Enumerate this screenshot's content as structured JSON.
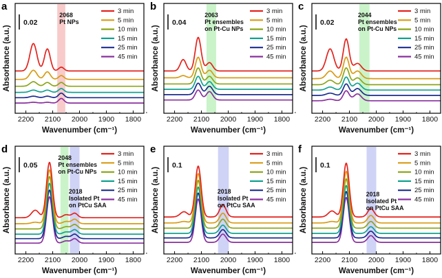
{
  "figure": {
    "panel_letters": [
      "a",
      "b",
      "c",
      "d",
      "e",
      "f"
    ]
  },
  "chart_data": [
    {
      "panel": "a",
      "type": "line",
      "xlabel": "Wavenumber (cm⁻¹)",
      "ylabel": "Absorbance (a.u.)",
      "xlim": [
        2240,
        1760
      ],
      "xticks": [
        "2200",
        "2100",
        "2000",
        "1900",
        "1800"
      ],
      "scale_bar": "0.02",
      "highlight": {
        "center": 2068,
        "width": 30,
        "color": "#f6b8b8"
      },
      "annotations": [
        {
          "label": "2068",
          "lines": [
            "2068",
            "Pt NPs"
          ]
        }
      ],
      "series": [
        {
          "name": "3 min",
          "color": "#e3221c",
          "offset": 5.0,
          "peaks": [
            [
              2172,
              3.6,
              13
            ],
            [
              2120,
              2.9,
              11
            ],
            [
              2068,
              0.5,
              10
            ]
          ]
        },
        {
          "name": "5 min",
          "color": "#d99a12",
          "offset": 3.9,
          "peaks": [
            [
              2172,
              1.2,
              13
            ],
            [
              2120,
              1.0,
              11
            ],
            [
              2068,
              0.5,
              10
            ]
          ]
        },
        {
          "name": "10 min",
          "color": "#8ba519",
          "offset": 3.0,
          "peaks": [
            [
              2172,
              0.6,
              13
            ],
            [
              2120,
              0.5,
              11
            ],
            [
              2068,
              0.5,
              10
            ]
          ]
        },
        {
          "name": "15 min",
          "color": "#10a291",
          "offset": 2.2,
          "peaks": [
            [
              2172,
              0.3,
              13
            ],
            [
              2120,
              0.3,
              11
            ],
            [
              2068,
              0.5,
              10
            ]
          ]
        },
        {
          "name": "25 min",
          "color": "#1b2c8f",
          "offset": 1.5,
          "peaks": [
            [
              2172,
              0.2,
              13
            ],
            [
              2120,
              0.2,
              11
            ],
            [
              2068,
              0.6,
              10
            ]
          ]
        },
        {
          "name": "45 min",
          "color": "#8a2f9f",
          "offset": 0.8,
          "peaks": [
            [
              2172,
              0.1,
              13
            ],
            [
              2120,
              0.1,
              11
            ],
            [
              2068,
              0.6,
              10
            ]
          ]
        }
      ]
    },
    {
      "panel": "b",
      "type": "line",
      "xlabel": "Wavenumber (cm⁻¹)",
      "ylabel": "Absorbance (a.u.)",
      "xlim": [
        2240,
        1760
      ],
      "xticks": [
        "2200",
        "2100",
        "2000",
        "1900",
        "1800"
      ],
      "scale_bar": "0.04",
      "highlight": {
        "center": 2063,
        "width": 36,
        "color": "#b8efb8"
      },
      "annotations": [
        {
          "label": "2063",
          "lines": [
            "2063",
            "Pt ensembles",
            "on Pt-Cu NPs"
          ]
        }
      ],
      "series": [
        {
          "name": "3 min",
          "color": "#e3221c",
          "offset": 5.0,
          "peaks": [
            [
              2168,
              1.5,
              11
            ],
            [
              2112,
              4.4,
              11
            ],
            [
              2070,
              1.1,
              12
            ]
          ]
        },
        {
          "name": "5 min",
          "color": "#d99a12",
          "offset": 4.1,
          "peaks": [
            [
              2168,
              0.3,
              11
            ],
            [
              2112,
              2.7,
              11
            ],
            [
              2070,
              1.0,
              12
            ]
          ]
        },
        {
          "name": "10 min",
          "color": "#8ba519",
          "offset": 3.3,
          "peaks": [
            [
              2112,
              2.1,
              11
            ],
            [
              2070,
              1.0,
              12
            ]
          ]
        },
        {
          "name": "15 min",
          "color": "#10a291",
          "offset": 2.6,
          "peaks": [
            [
              2112,
              1.7,
              11
            ],
            [
              2070,
              1.0,
              12
            ]
          ]
        },
        {
          "name": "25 min",
          "color": "#1b2c8f",
          "offset": 1.9,
          "peaks": [
            [
              2112,
              1.5,
              11
            ],
            [
              2070,
              1.1,
              12
            ]
          ]
        },
        {
          "name": "45 min",
          "color": "#8a2f9f",
          "offset": 1.2,
          "peaks": [
            [
              2112,
              1.3,
              11
            ],
            [
              2070,
              1.1,
              12
            ]
          ]
        }
      ]
    },
    {
      "panel": "c",
      "type": "line",
      "xlabel": "Wavenumber (cm⁻¹)",
      "ylabel": "Absorbance (a.u.)",
      "xlim": [
        2240,
        1760
      ],
      "xticks": [
        "2200",
        "2100",
        "2000",
        "1900",
        "1800"
      ],
      "scale_bar": "0.02",
      "highlight": {
        "center": 2044,
        "width": 38,
        "color": "#b8efb8"
      },
      "annotations": [
        {
          "label": "2044",
          "lines": [
            "2044",
            "Pt ensembles",
            "on Pt-Cu NPs"
          ]
        }
      ],
      "series": [
        {
          "name": "3 min",
          "color": "#e3221c",
          "offset": 5.0,
          "peaks": [
            [
              2172,
              2.9,
              14
            ],
            [
              2112,
              4.2,
              11
            ],
            [
              2070,
              1.0,
              14
            ]
          ]
        },
        {
          "name": "5 min",
          "color": "#d99a12",
          "offset": 4.0,
          "peaks": [
            [
              2172,
              1.0,
              14
            ],
            [
              2112,
              2.8,
              11
            ],
            [
              2070,
              1.0,
              14
            ]
          ]
        },
        {
          "name": "10 min",
          "color": "#8ba519",
          "offset": 3.2,
          "peaks": [
            [
              2172,
              0.6,
              14
            ],
            [
              2112,
              2.2,
              11
            ],
            [
              2070,
              0.9,
              14
            ]
          ]
        },
        {
          "name": "15 min",
          "color": "#10a291",
          "offset": 2.5,
          "peaks": [
            [
              2172,
              0.4,
              14
            ],
            [
              2112,
              1.7,
              11
            ],
            [
              2070,
              0.9,
              14
            ]
          ]
        },
        {
          "name": "25 min",
          "color": "#1b2c8f",
          "offset": 1.8,
          "peaks": [
            [
              2172,
              0.3,
              14
            ],
            [
              2112,
              1.5,
              11
            ],
            [
              2070,
              0.9,
              14
            ]
          ]
        },
        {
          "name": "45 min",
          "color": "#8a2f9f",
          "offset": 1.1,
          "peaks": [
            [
              2172,
              0.2,
              14
            ],
            [
              2112,
              1.3,
              11
            ],
            [
              2070,
              0.9,
              14
            ]
          ]
        }
      ]
    },
    {
      "panel": "d",
      "type": "line",
      "xlabel": "Wavenumber (cm⁻¹)",
      "ylabel": "Absorbance (a.u.)",
      "xlim": [
        2240,
        1760
      ],
      "xticks": [
        "2200",
        "2100",
        "2000",
        "1900",
        "1800"
      ],
      "scale_bar": "0.05",
      "highlights": [
        {
          "center": 2056,
          "width": 30,
          "color": "#b8efb8"
        },
        {
          "center": 2018,
          "width": 36,
          "color": "#bfc4f2"
        }
      ],
      "annotations": [
        {
          "label": "2048",
          "lines": [
            "2048",
            "Pt ensembles",
            "on Pt-Cu NPs"
          ]
        },
        {
          "label": "2018",
          "lines": [
            "2018",
            "Isolated Pt",
            "on PtCu SAA"
          ]
        }
      ],
      "series": [
        {
          "name": "3 min",
          "color": "#e3221c",
          "offset": 4.3,
          "peaks": [
            [
              2165,
              1.0,
              14
            ],
            [
              2112,
              7.4,
              11
            ],
            [
              2050,
              0.4,
              12
            ],
            [
              2018,
              0.6,
              11
            ]
          ]
        },
        {
          "name": "5 min",
          "color": "#d99a12",
          "offset": 3.5,
          "peaks": [
            [
              2165,
              0.2,
              14
            ],
            [
              2112,
              7.2,
              11
            ],
            [
              2050,
              0.3,
              12
            ],
            [
              2018,
              0.6,
              11
            ]
          ]
        },
        {
          "name": "10 min",
          "color": "#8ba519",
          "offset": 2.8,
          "peaks": [
            [
              2112,
              7.0,
              11
            ],
            [
              2050,
              0.3,
              12
            ],
            [
              2018,
              0.6,
              11
            ]
          ]
        },
        {
          "name": "15 min",
          "color": "#10a291",
          "offset": 2.1,
          "peaks": [
            [
              2112,
              6.8,
              11
            ],
            [
              2050,
              0.3,
              12
            ],
            [
              2018,
              0.6,
              11
            ]
          ]
        },
        {
          "name": "25 min",
          "color": "#1b2c8f",
          "offset": 1.5,
          "peaks": [
            [
              2112,
              6.5,
              11
            ],
            [
              2050,
              0.3,
              12
            ],
            [
              2018,
              0.6,
              11
            ]
          ]
        },
        {
          "name": "45 min",
          "color": "#8a2f9f",
          "offset": 0.9,
          "peaks": [
            [
              2112,
              6.2,
              11
            ],
            [
              2050,
              0.3,
              12
            ],
            [
              2018,
              0.6,
              11
            ]
          ]
        }
      ]
    },
    {
      "panel": "e",
      "type": "line",
      "xlabel": "Wavenumber (cm⁻¹)",
      "ylabel": "Absorbance (a.u.)",
      "xlim": [
        2240,
        1760
      ],
      "xticks": [
        "2200",
        "2100",
        "2000",
        "1900",
        "1800"
      ],
      "scale_bar": "0.1",
      "highlight": {
        "center": 2018,
        "width": 40,
        "color": "#bfc4f2"
      },
      "annotations": [
        {
          "label": "2018",
          "lines": [
            "2018",
            "Isolated Pt",
            "on PtCu SAA"
          ]
        }
      ],
      "series": [
        {
          "name": "3 min",
          "color": "#e3221c",
          "offset": 4.4,
          "peaks": [
            [
              2165,
              0.7,
              14
            ],
            [
              2112,
              6.8,
              11
            ],
            [
              2020,
              1.6,
              12
            ]
          ]
        },
        {
          "name": "5 min",
          "color": "#d99a12",
          "offset": 3.6,
          "peaks": [
            [
              2165,
              0.2,
              14
            ],
            [
              2112,
              6.6,
              11
            ],
            [
              2020,
              1.3,
              12
            ]
          ]
        },
        {
          "name": "10 min",
          "color": "#8ba519",
          "offset": 2.9,
          "peaks": [
            [
              2112,
              6.4,
              11
            ],
            [
              2020,
              1.2,
              12
            ]
          ]
        },
        {
          "name": "15 min",
          "color": "#10a291",
          "offset": 2.2,
          "peaks": [
            [
              2112,
              6.2,
              11
            ],
            [
              2020,
              1.1,
              12
            ]
          ]
        },
        {
          "name": "25 min",
          "color": "#1b2c8f",
          "offset": 1.6,
          "peaks": [
            [
              2112,
              6.0,
              11
            ],
            [
              2020,
              1.1,
              12
            ]
          ]
        },
        {
          "name": "45 min",
          "color": "#8a2f9f",
          "offset": 1.0,
          "peaks": [
            [
              2112,
              5.8,
              11
            ],
            [
              2020,
              1.1,
              12
            ]
          ]
        }
      ]
    },
    {
      "panel": "f",
      "type": "line",
      "xlabel": "Wavenumber (cm⁻¹)",
      "ylabel": "Absorbance (a.u.)",
      "xlim": [
        2240,
        1760
      ],
      "xticks": [
        "2200",
        "2100",
        "2000",
        "1900",
        "1800"
      ],
      "scale_bar": "0.1",
      "highlight": {
        "center": 2018,
        "width": 36,
        "color": "#bfc4f2"
      },
      "annotations": [
        {
          "label": "2018",
          "lines": [
            "2018",
            "Isolated Pt",
            "on PtCu SAA"
          ]
        }
      ],
      "series": [
        {
          "name": "3 min",
          "color": "#e3221c",
          "offset": 4.4,
          "peaks": [
            [
              2165,
              0.8,
              14
            ],
            [
              2112,
              7.2,
              11
            ],
            [
              2020,
              1.1,
              12
            ]
          ]
        },
        {
          "name": "5 min",
          "color": "#d99a12",
          "offset": 3.6,
          "peaks": [
            [
              2165,
              0.2,
              14
            ],
            [
              2112,
              6.9,
              11
            ],
            [
              2020,
              1.0,
              12
            ]
          ]
        },
        {
          "name": "10 min",
          "color": "#8ba519",
          "offset": 2.9,
          "peaks": [
            [
              2112,
              6.6,
              11
            ],
            [
              2020,
              0.9,
              12
            ]
          ]
        },
        {
          "name": "15 min",
          "color": "#10a291",
          "offset": 2.2,
          "peaks": [
            [
              2112,
              6.4,
              11
            ],
            [
              2020,
              0.9,
              12
            ]
          ]
        },
        {
          "name": "25 min",
          "color": "#1b2c8f",
          "offset": 1.6,
          "peaks": [
            [
              2112,
              6.2,
              11
            ],
            [
              2020,
              0.9,
              12
            ]
          ]
        },
        {
          "name": "45 min",
          "color": "#8a2f9f",
          "offset": 1.0,
          "peaks": [
            [
              2112,
              6.0,
              11
            ],
            [
              2020,
              0.9,
              12
            ]
          ]
        }
      ]
    }
  ]
}
